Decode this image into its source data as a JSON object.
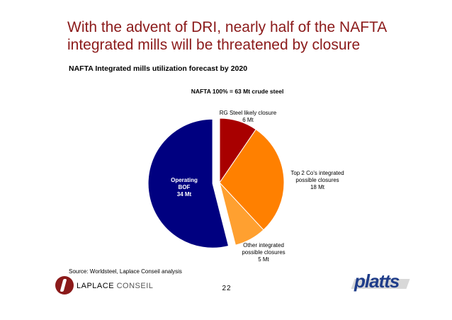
{
  "slide": {
    "headline_line1": "With the advent of DRI, nearly half of the NAFTA",
    "headline_line2": "integrated mills will be threatened by closure",
    "subtitle": "NAFTA Integrated mills utilization forecast by 2020",
    "source": "Source: Worldsteel, Laplace Conseil analysis",
    "page_number": "22"
  },
  "logos": {
    "laplace_main": "LAPLACE",
    "laplace_sub": "CONSEIL",
    "platts": "platts"
  },
  "chart_data": {
    "type": "pie",
    "title": "NAFTA 100% = 63 Mt crude steel",
    "unit": "Mt",
    "slices": [
      {
        "label_line1": "RG Steel likely closure",
        "label_line2": "",
        "value_text": "6 Mt",
        "value": 6,
        "color": "#a80000",
        "exploded": false
      },
      {
        "label_line1": "Top 2 Co's integrated",
        "label_line2": "possible closures",
        "value_text": "18 Mt",
        "value": 18,
        "color": "#ff8000",
        "exploded": false
      },
      {
        "label_line1": "Other integrated",
        "label_line2": "possible closures",
        "value_text": "5 Mt",
        "value": 5,
        "color": "#ffa030",
        "exploded": false
      },
      {
        "label_line1": "Operating",
        "label_line2": "BOF",
        "value_text": "34 Mt",
        "value": 34,
        "color": "#000080",
        "exploded": true
      }
    ]
  }
}
